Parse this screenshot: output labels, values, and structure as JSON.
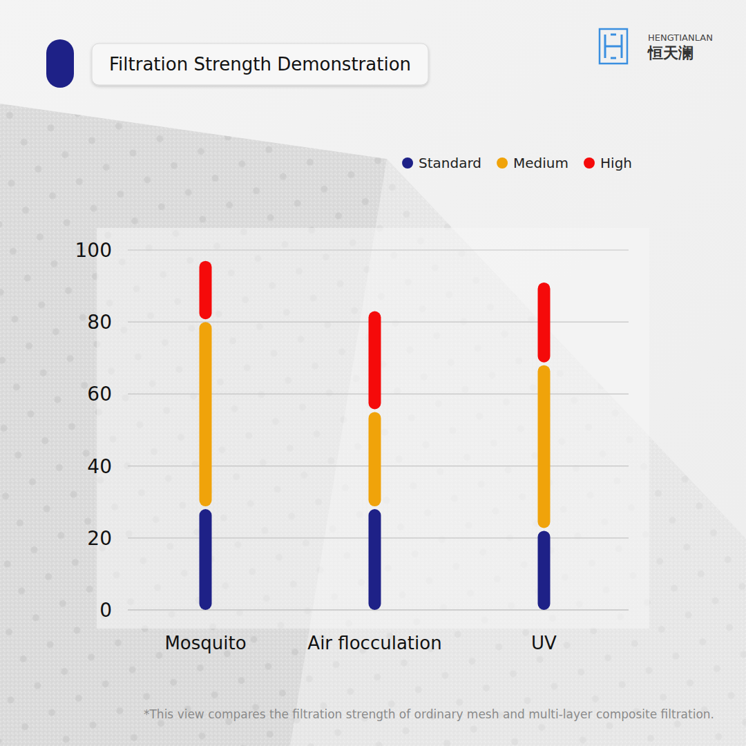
{
  "header": {
    "brand": "HENGTIANLAN",
    "brand_cn": "恒天澜"
  },
  "chart_data": {
    "type": "bar",
    "stacked": true,
    "title": "Filtration Strength Demonstration",
    "categories": [
      "Mosquito",
      "Air flocculation",
      "UV"
    ],
    "series": [
      {
        "name": "Standard",
        "color": "#1e2187",
        "values": [
          28,
          28,
          22
        ]
      },
      {
        "name": "Medium",
        "color": "#f0a30a",
        "values": [
          52,
          27,
          46
        ]
      },
      {
        "name": "High",
        "color": "#f50a0a",
        "values": [
          17,
          28,
          23
        ]
      }
    ],
    "ylim": [
      0,
      100
    ],
    "yticks": [
      0,
      20,
      40,
      60,
      80,
      100
    ],
    "grid": true,
    "legend": "top-right",
    "annotations": [
      "*This view compares the filtration strength of ordinary mesh and multi-layer composite filtration."
    ]
  }
}
